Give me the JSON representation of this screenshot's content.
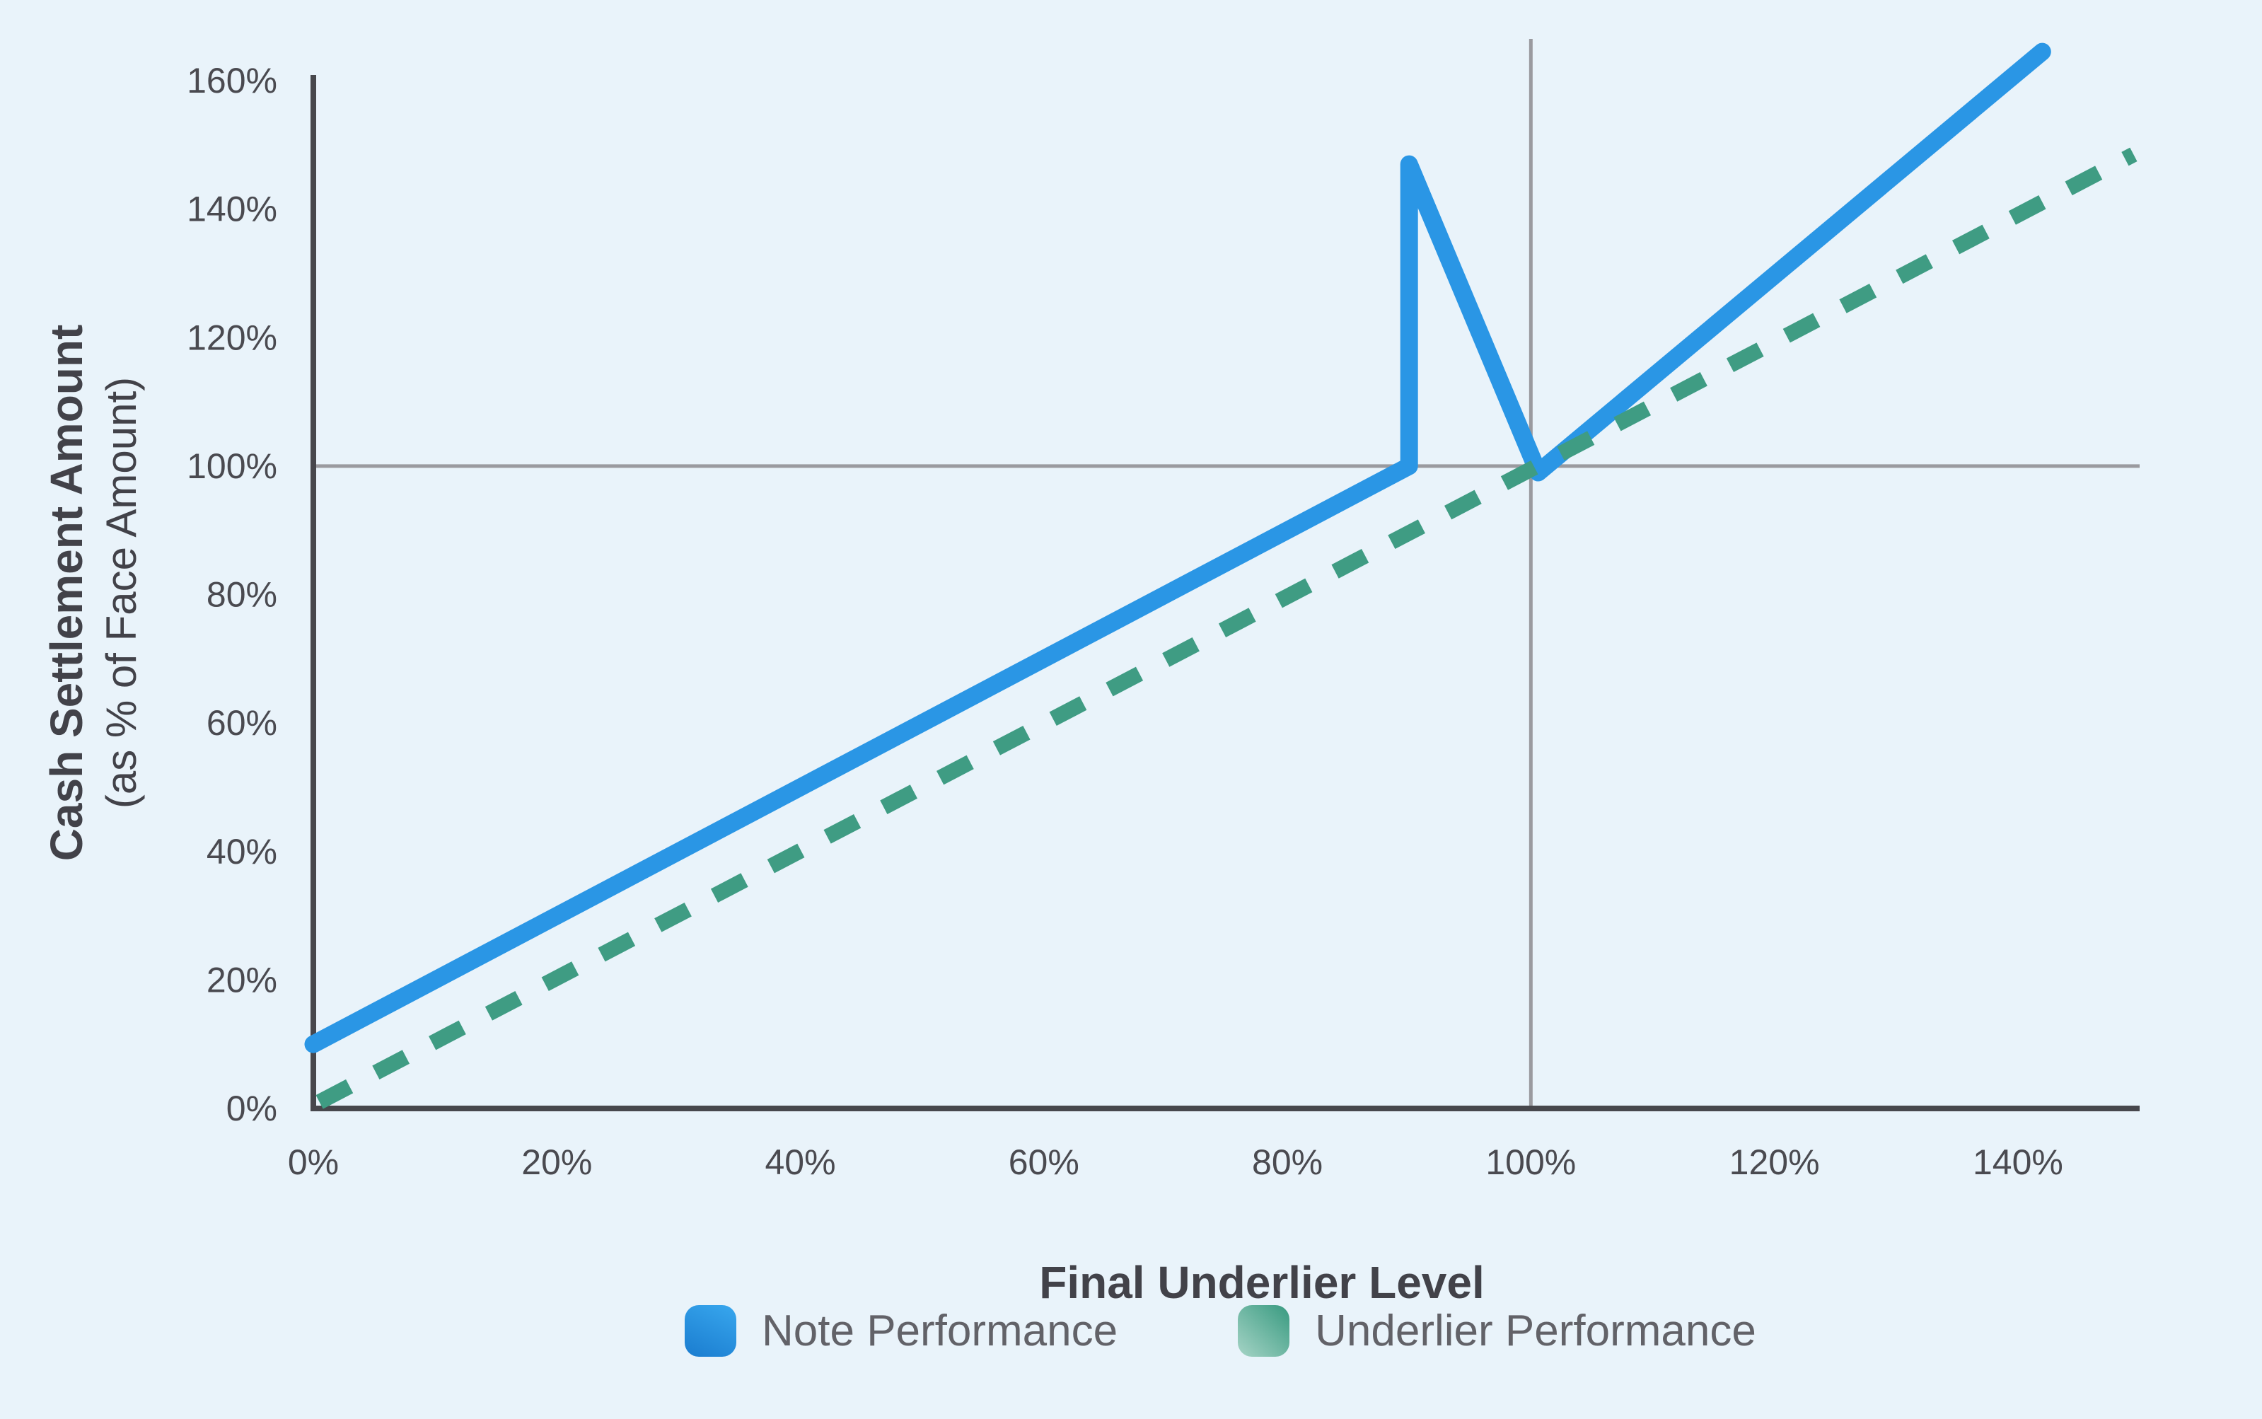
{
  "chart_data": {
    "type": "line",
    "title": "",
    "xlabel": "Final Underlier Level",
    "ylabel_line1": "Cash Settlement Amount",
    "ylabel_line2": "(as % of Face Amount)",
    "xlim": [
      0,
      150
    ],
    "ylim": [
      0,
      160
    ],
    "x_tick_values": [
      0,
      20,
      40,
      60,
      80,
      100,
      120,
      140
    ],
    "x_tick_labels": [
      "0%",
      "20%",
      "40%",
      "60%",
      "80%",
      "100%",
      "120%",
      "140%"
    ],
    "y_tick_values": [
      0,
      20,
      40,
      60,
      80,
      100,
      120,
      140,
      160
    ],
    "y_tick_labels": [
      "0%",
      "20%",
      "40%",
      "60%",
      "80%",
      "100%",
      "120%",
      "140%",
      "160%"
    ],
    "grid": "off",
    "reference_lines": {
      "x_value": 100,
      "y_value": 100
    },
    "legend_position": "bottom",
    "series": [
      {
        "name": "Note Performance",
        "style": "solid",
        "color": "#2a96e5",
        "points": [
          [
            0,
            10
          ],
          [
            90,
            100
          ],
          [
            90,
            147
          ],
          [
            100.6,
            99
          ],
          [
            142,
            164.5
          ]
        ]
      },
      {
        "name": "Underlier Performance",
        "style": "dashed",
        "color": "#3f9c83",
        "points": [
          [
            0.5,
            1
          ],
          [
            149.5,
            148.5
          ]
        ]
      }
    ]
  },
  "colors": {
    "background": "#e9f3fa",
    "axis": "#47474c",
    "reference_line": "#9a9a9f",
    "tick_text": "#4a4a50",
    "title_text": "#424249",
    "legend_text": "#626268",
    "note_line": "#2a96e5",
    "underlier_line": "#3f9c83"
  }
}
